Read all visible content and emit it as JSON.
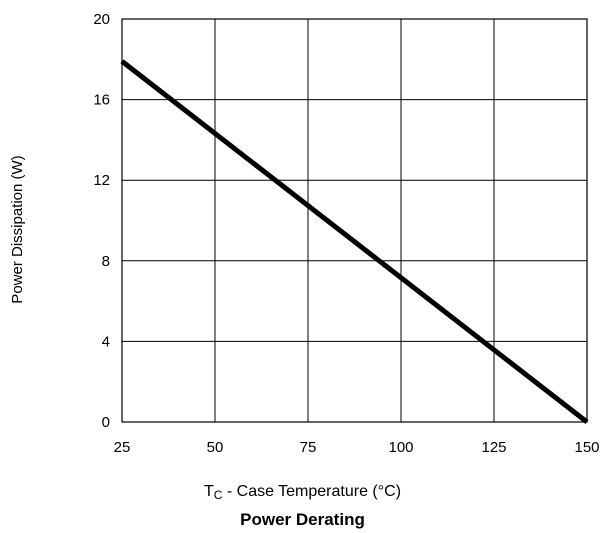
{
  "chart_data": {
    "type": "line",
    "title": "Power Derating",
    "xlabel": {
      "main": "T",
      "sub": "C",
      "rest": " - Case Temperature (°C)"
    },
    "ylabel": "Power Dissipation (W)",
    "xlim": [
      25,
      150
    ],
    "ylim": [
      0,
      20
    ],
    "x_ticks": [
      "25",
      "50",
      "75",
      "100",
      "125",
      "150"
    ],
    "y_ticks": [
      "0",
      "4",
      "8",
      "12",
      "16",
      "20"
    ],
    "grid": true,
    "series": [
      {
        "x": [
          25,
          150
        ],
        "y": [
          17.9,
          0
        ]
      }
    ]
  }
}
